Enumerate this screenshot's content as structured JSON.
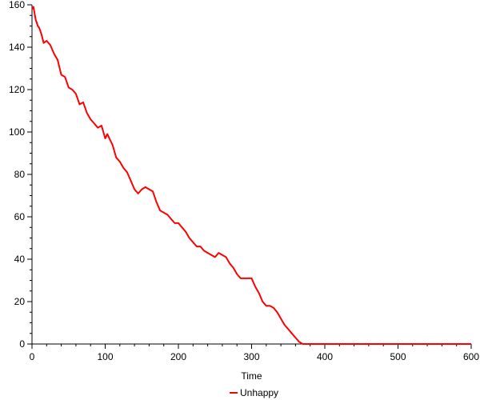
{
  "chart_data": {
    "type": "line",
    "title": "",
    "xlabel": "Time",
    "ylabel": "",
    "xlim": [
      0,
      600
    ],
    "ylim": [
      0,
      160
    ],
    "x_ticks": [
      0,
      100,
      200,
      300,
      400,
      500,
      600
    ],
    "y_ticks": [
      0,
      20,
      40,
      60,
      80,
      100,
      120,
      140,
      160
    ],
    "grid": false,
    "legend": "bottom-center",
    "series": [
      {
        "name": "Unhappy",
        "color": "#ff0000",
        "x": [
          0,
          2,
          5,
          8,
          10,
          13,
          16,
          20,
          25,
          30,
          35,
          40,
          45,
          50,
          55,
          60,
          65,
          70,
          75,
          80,
          85,
          90,
          95,
          100,
          103,
          107,
          110,
          115,
          120,
          125,
          130,
          135,
          140,
          145,
          150,
          155,
          160,
          165,
          170,
          175,
          180,
          185,
          190,
          195,
          200,
          205,
          210,
          215,
          220,
          225,
          230,
          235,
          240,
          245,
          250,
          255,
          260,
          265,
          270,
          275,
          280,
          285,
          290,
          295,
          300,
          305,
          310,
          315,
          320,
          325,
          330,
          335,
          340,
          345,
          350,
          355,
          360,
          365,
          370,
          375,
          380,
          400,
          450,
          500,
          550,
          600
        ],
        "y": [
          158,
          159,
          153,
          150,
          149,
          146,
          142,
          143,
          141,
          137,
          134,
          127,
          126,
          121,
          120,
          118,
          113,
          114,
          109,
          106,
          104,
          102,
          103,
          97,
          99,
          96,
          94,
          88,
          86,
          83,
          81,
          77,
          73,
          71,
          73,
          74,
          73,
          72,
          67,
          63,
          62,
          61,
          59,
          57,
          57,
          55,
          53,
          50,
          48,
          46,
          46,
          44,
          43,
          42,
          41,
          43,
          42,
          41,
          38,
          36,
          33,
          31,
          31,
          31,
          31,
          27,
          24,
          20,
          18,
          18,
          17,
          15,
          12,
          9,
          7,
          5,
          3,
          1,
          0,
          0,
          0,
          0,
          0,
          0,
          0,
          0
        ]
      }
    ]
  }
}
